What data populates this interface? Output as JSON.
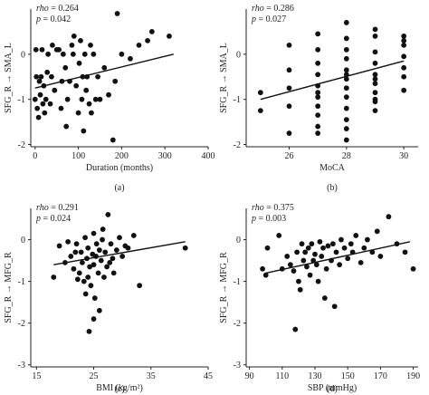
{
  "chart_data": [
    {
      "id": "a",
      "type": "scatter",
      "panel_label": "(a)",
      "xlabel": "Duration (months)",
      "ylabel": "SFG_R → SMA_L",
      "xlim": [
        -10,
        400
      ],
      "ylim": [
        -2.05,
        1.0
      ],
      "xticks": [
        0,
        100,
        200,
        300,
        400
      ],
      "yticks": [
        -2,
        -1,
        0
      ],
      "stat_label1": "rho",
      "stat_value1": "0.264",
      "stat_label2": "p",
      "stat_value2": "0.042",
      "fit": {
        "x": [
          0,
          320
        ],
        "y": [
          -0.75,
          0.0
        ]
      },
      "x": [
        0,
        2,
        3,
        5,
        8,
        10,
        12,
        14,
        16,
        18,
        20,
        22,
        25,
        28,
        30,
        35,
        38,
        40,
        45,
        50,
        55,
        60,
        62,
        65,
        70,
        72,
        75,
        80,
        85,
        88,
        90,
        95,
        100,
        102,
        105,
        108,
        110,
        112,
        115,
        118,
        120,
        125,
        128,
        130,
        135,
        140,
        145,
        150,
        160,
        170,
        180,
        185,
        190,
        200,
        220,
        240,
        260,
        270,
        310
      ],
      "y": [
        -1.0,
        0.1,
        -0.5,
        -1.2,
        -1.4,
        -0.6,
        -0.9,
        -0.5,
        0.1,
        -1.1,
        -0.7,
        -1.3,
        -1.0,
        -0.4,
        0.0,
        -1.1,
        -0.5,
        0.2,
        -0.8,
        0.1,
        0.1,
        -1.2,
        -0.6,
        0.0,
        -0.3,
        -1.6,
        -1.0,
        -0.6,
        0.2,
        0.0,
        0.4,
        -0.7,
        -1.3,
        -0.2,
        0.3,
        -1.0,
        -0.5,
        -1.7,
        0.0,
        -0.8,
        -0.5,
        -1.1,
        0.2,
        -1.3,
        0.0,
        -1.0,
        -0.5,
        -1.0,
        -0.3,
        -0.9,
        -1.9,
        -0.6,
        0.9,
        0.0,
        -0.1,
        0.2,
        0.3,
        0.5,
        0.4
      ]
    },
    {
      "id": "b",
      "type": "scatter",
      "panel_label": "(b)",
      "xlabel": "MoCA",
      "ylabel": "SFG_R → SMA_L",
      "xlim": [
        24.5,
        30.5
      ],
      "ylim": [
        -2.05,
        1.0
      ],
      "xticks": [
        26,
        28,
        30
      ],
      "yticks": [
        -2,
        -1,
        0
      ],
      "stat_label1": "rho",
      "stat_value1": "0.286",
      "stat_label2": "p",
      "stat_value2": "0.027",
      "fit": {
        "x": [
          25,
          30
        ],
        "y": [
          -1.0,
          -0.15
        ]
      },
      "x": [
        25,
        25,
        26,
        26,
        26,
        26,
        26,
        27,
        27,
        27,
        27,
        27,
        27,
        27,
        27,
        27,
        27,
        27,
        28,
        28,
        28,
        28,
        28,
        28,
        28,
        28,
        28,
        28,
        28,
        28,
        28,
        29,
        29,
        29,
        29,
        29,
        29,
        29,
        29,
        29,
        29,
        29,
        30,
        30,
        30,
        30,
        30,
        30,
        30
      ],
      "y": [
        -0.85,
        -1.25,
        0.2,
        -0.35,
        -0.75,
        -1.15,
        -1.75,
        0.45,
        0.1,
        -0.2,
        -0.45,
        -0.7,
        -0.95,
        -1.15,
        -1.35,
        -1.6,
        -1.75,
        -0.85,
        0.7,
        0.35,
        0.1,
        -0.1,
        -0.35,
        -0.55,
        -0.75,
        -0.95,
        -1.2,
        -1.45,
        -1.65,
        -1.9,
        -0.45,
        0.4,
        0.05,
        -0.2,
        -0.45,
        -0.65,
        -0.85,
        -1.05,
        -1.25,
        -0.55,
        -1.0,
        0.55,
        0.4,
        0.2,
        -0.05,
        -0.3,
        -0.5,
        -0.8,
        0.3
      ]
    },
    {
      "id": "c",
      "type": "scatter",
      "panel_label": "(c)",
      "xlabel": "BMI (kg/m²)",
      "ylabel": "SFG_R → MFG_R",
      "xlim": [
        14,
        45
      ],
      "ylim": [
        -3.05,
        0.75
      ],
      "xticks": [
        15,
        25,
        35,
        45
      ],
      "yticks": [
        -3,
        -2,
        -1,
        0
      ],
      "stat_label1": "rho",
      "stat_value1": "0.291",
      "stat_label2": "p",
      "stat_value2": "0.024",
      "fit": {
        "x": [
          18,
          41
        ],
        "y": [
          -0.6,
          -0.05
        ]
      },
      "x": [
        18,
        19,
        20,
        20.5,
        21,
        21.5,
        22,
        22.5,
        22.8,
        23,
        23.3,
        23.5,
        23.8,
        24,
        24,
        24.3,
        24.5,
        24.8,
        25,
        25,
        25.2,
        25.5,
        25.8,
        26,
        26,
        26.3,
        26.5,
        26.8,
        27,
        27.3,
        27.5,
        28,
        28.3,
        28.5,
        29,
        29.5,
        30,
        30.5,
        31,
        32,
        33,
        41,
        24.2,
        23.6,
        25.4,
        26.6,
        22.2,
        27.8,
        21.8,
        25
      ],
      "y": [
        -0.9,
        -0.15,
        -0.55,
        -0.05,
        -0.4,
        -0.7,
        -0.1,
        -0.8,
        -0.3,
        -0.55,
        -1.0,
        0.05,
        -0.45,
        -0.9,
        -0.2,
        -0.65,
        -1.1,
        -0.35,
        0.15,
        -0.6,
        -1.4,
        -0.1,
        -0.8,
        -0.25,
        -1.7,
        -0.5,
        0.0,
        -0.9,
        -0.3,
        -0.65,
        0.6,
        -0.1,
        -0.45,
        -0.8,
        -0.25,
        0.05,
        -0.4,
        -0.15,
        -0.2,
        0.1,
        -1.1,
        -0.2,
        -2.2,
        -1.3,
        -0.4,
        0.25,
        -0.95,
        -0.55,
        -0.3,
        -1.9
      ]
    },
    {
      "id": "d",
      "type": "scatter",
      "panel_label": "(d)",
      "xlabel": "SBP (mmHg)",
      "ylabel": "SFG_R → MFG_R",
      "xlim": [
        88,
        193
      ],
      "ylim": [
        -3.05,
        0.75
      ],
      "xticks": [
        90,
        110,
        130,
        150,
        170,
        190
      ],
      "yticks": [
        -3,
        -2,
        -1,
        0
      ],
      "stat_label1": "rho",
      "stat_value1": "0.375",
      "stat_label2": "p",
      "stat_value2": "0.003",
      "fit": {
        "x": [
          100,
          188
        ],
        "y": [
          -0.8,
          -0.05
        ]
      },
      "x": [
        98,
        100,
        101,
        108,
        110,
        113,
        115,
        117,
        118,
        119,
        120,
        121,
        122,
        123,
        124,
        125,
        126,
        127,
        128,
        129,
        130,
        131,
        132,
        133,
        134,
        135,
        136,
        137,
        138,
        140,
        141,
        142,
        143,
        145,
        146,
        148,
        150,
        152,
        153,
        155,
        158,
        160,
        162,
        165,
        168,
        170,
        175,
        180,
        185,
        190
      ],
      "y": [
        -0.7,
        -0.85,
        -0.2,
        0.1,
        -0.7,
        -0.4,
        -0.6,
        -0.75,
        -2.15,
        -0.3,
        -1.0,
        -1.2,
        -0.1,
        -0.5,
        -0.3,
        -0.65,
        -0.2,
        -0.85,
        -0.1,
        -0.5,
        -0.35,
        -0.6,
        -1.0,
        -0.05,
        -0.4,
        -0.2,
        -1.4,
        -0.7,
        -0.15,
        -0.5,
        -0.1,
        -1.6,
        -0.3,
        -0.6,
        0.0,
        -0.2,
        -0.45,
        -0.1,
        -0.3,
        0.1,
        -0.55,
        -0.2,
        0.0,
        -0.3,
        0.2,
        -0.4,
        0.55,
        -0.1,
        -0.3,
        -0.7
      ]
    }
  ]
}
